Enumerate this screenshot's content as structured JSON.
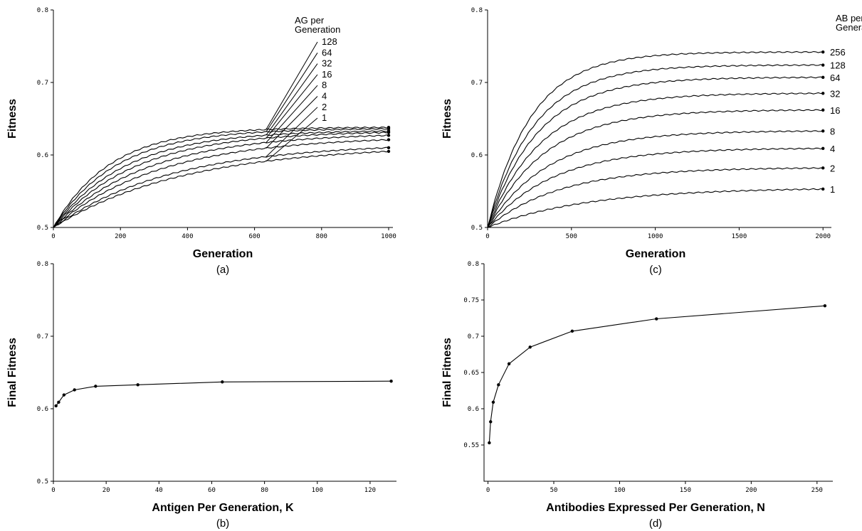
{
  "chart_data": [
    {
      "id": "a",
      "type": "line",
      "caption": "(a)",
      "xlabel": "Generation",
      "ylabel": "Fitness",
      "xlim": [
        0,
        1000
      ],
      "ylim": [
        0.5,
        0.8
      ],
      "xticks": [
        0,
        200,
        400,
        600,
        800,
        1000
      ],
      "yticks": [
        0.5,
        0.6,
        0.7,
        0.8
      ],
      "legend_title": [
        "AG per",
        "Generation"
      ],
      "legend_position": "top-right",
      "series": [
        {
          "name": "128",
          "final": 0.638,
          "tau": 170
        },
        {
          "name": "64",
          "final": 0.636,
          "tau": 190
        },
        {
          "name": "32",
          "final": 0.633,
          "tau": 215
        },
        {
          "name": "16",
          "final": 0.631,
          "tau": 245
        },
        {
          "name": "8",
          "final": 0.627,
          "tau": 280
        },
        {
          "name": "4",
          "final": 0.621,
          "tau": 315
        },
        {
          "name": "2",
          "final": 0.61,
          "tau": 350
        },
        {
          "name": "1",
          "final": 0.605,
          "tau": 390
        }
      ]
    },
    {
      "id": "b",
      "type": "line",
      "caption": "(b)",
      "xlabel": "Antigen Per Generation, K",
      "ylabel": "Final Fitness",
      "xlim": [
        0,
        130
      ],
      "ylim": [
        0.5,
        0.8
      ],
      "xticks": [
        0,
        20,
        40,
        60,
        80,
        100,
        120
      ],
      "yticks": [
        0.5,
        0.6,
        0.7,
        0.8
      ],
      "x": [
        1,
        2,
        4,
        8,
        16,
        32,
        64,
        128
      ],
      "y": [
        0.604,
        0.609,
        0.619,
        0.626,
        0.631,
        0.633,
        0.637,
        0.638
      ]
    },
    {
      "id": "c",
      "type": "line",
      "caption": "(c)",
      "xlabel": "Generation",
      "ylabel": "Fitness",
      "xlim": [
        0,
        2050
      ],
      "ylim": [
        0.5,
        0.8
      ],
      "xticks": [
        0,
        500,
        1000,
        1500,
        2000
      ],
      "yticks": [
        0.5,
        0.6,
        0.7,
        0.8
      ],
      "legend_title": [
        "AB per",
        "Generation"
      ],
      "legend_position": "right",
      "series": [
        {
          "name": "256",
          "final": 0.742,
          "tau": 260
        },
        {
          "name": "128",
          "final": 0.724,
          "tau": 280
        },
        {
          "name": "64",
          "final": 0.707,
          "tau": 300
        },
        {
          "name": "32",
          "final": 0.685,
          "tau": 320
        },
        {
          "name": "16",
          "final": 0.662,
          "tau": 340
        },
        {
          "name": "8",
          "final": 0.633,
          "tau": 360
        },
        {
          "name": "4",
          "final": 0.609,
          "tau": 390
        },
        {
          "name": "2",
          "final": 0.582,
          "tau": 430
        },
        {
          "name": "1",
          "final": 0.553,
          "tau": 600
        }
      ]
    },
    {
      "id": "d",
      "type": "line",
      "caption": "(d)",
      "xlabel": "Antibodies Expressed Per Generation, N",
      "ylabel": "Final Fitness",
      "xlim": [
        -3,
        262
      ],
      "ylim": [
        0.5,
        0.8
      ],
      "xticks": [
        0,
        50,
        100,
        150,
        200,
        250
      ],
      "yticks": [
        0.55,
        0.6,
        0.65,
        0.7,
        0.75,
        0.8
      ],
      "x": [
        1,
        2,
        4,
        8,
        16,
        32,
        64,
        128,
        256
      ],
      "y": [
        0.553,
        0.582,
        0.609,
        0.633,
        0.662,
        0.685,
        0.707,
        0.724,
        0.742
      ]
    }
  ]
}
